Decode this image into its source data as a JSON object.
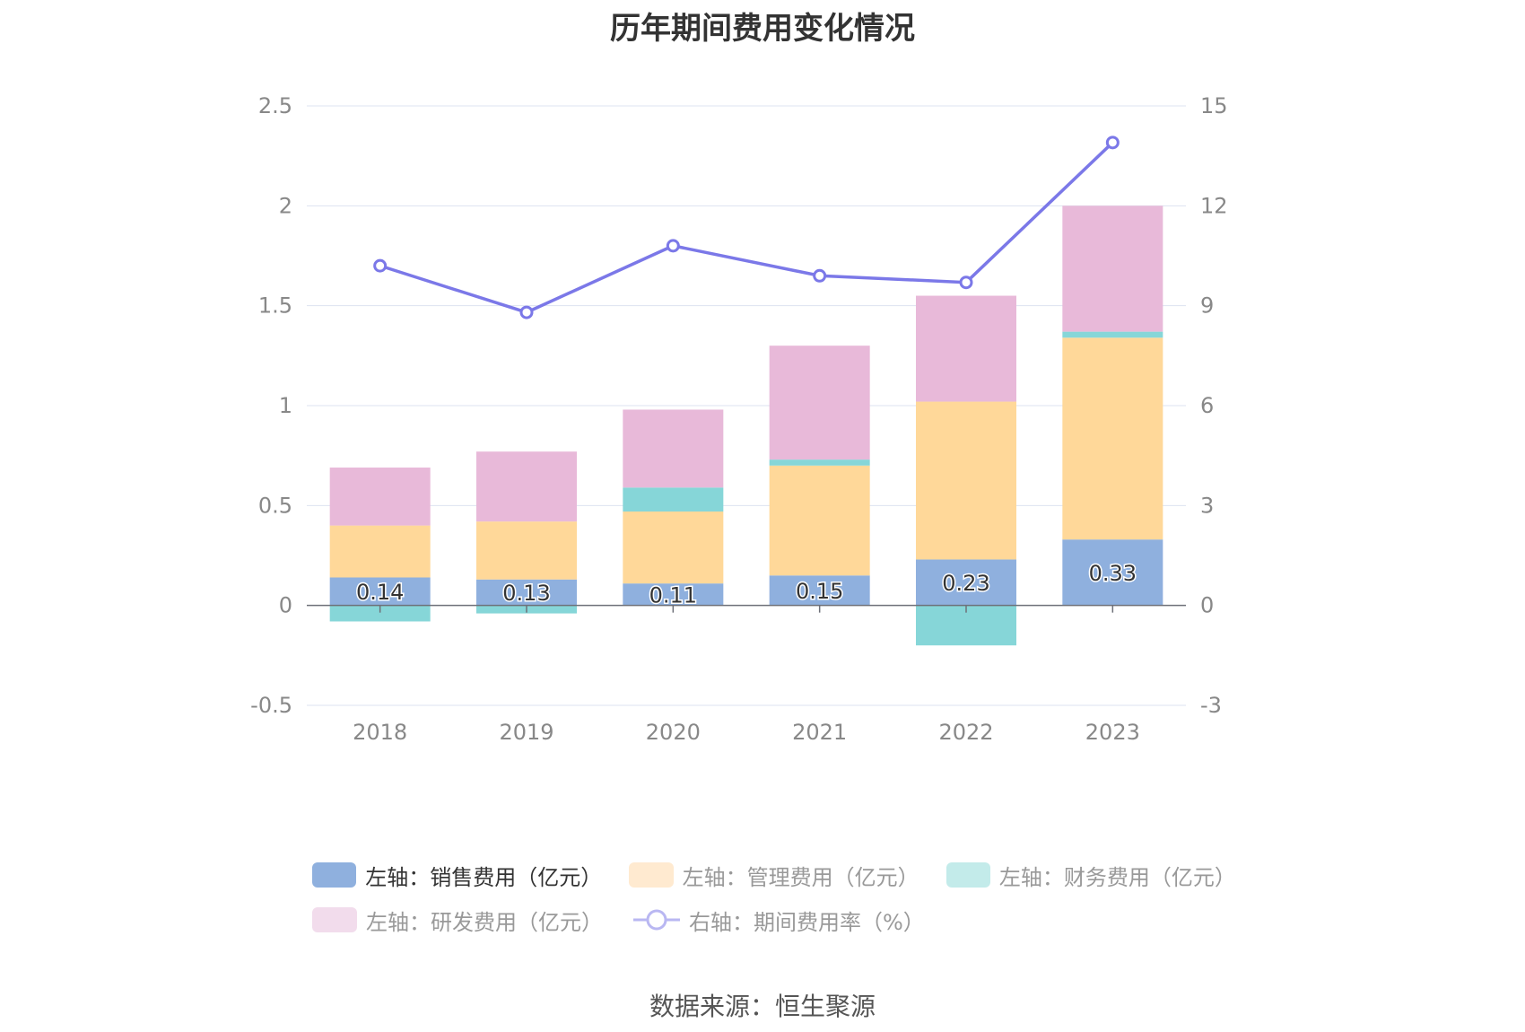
{
  "title": "历年期间费用变化情况",
  "source": "数据来源：恒生聚源",
  "colors": {
    "sales": "#8fb0de",
    "admin": "#ffd899",
    "finance": "#86d6d8",
    "rnd": "#e8b9d9",
    "rate": "#7b78e8",
    "grid": "#dde3f0",
    "axis_text": "#888888"
  },
  "legend": {
    "sales": "左轴：销售费用（亿元）",
    "admin": "左轴：管理费用（亿元）",
    "finance": "左轴：财务费用（亿元）",
    "rnd": "左轴：研发费用（亿元）",
    "rate": "右轴：期间费用率（%）"
  },
  "chart_data": {
    "type": "bar",
    "stacked": true,
    "categories": [
      "2018",
      "2019",
      "2020",
      "2021",
      "2022",
      "2023"
    ],
    "series": [
      {
        "name": "左轴：销售费用（亿元）",
        "axis": "left",
        "values": [
          0.14,
          0.13,
          0.11,
          0.15,
          0.23,
          0.33
        ],
        "labels": [
          "0.14",
          "0.13",
          "0.11",
          "0.15",
          "0.23",
          "0.33"
        ]
      },
      {
        "name": "左轴：管理费用（亿元）",
        "axis": "left",
        "values": [
          0.26,
          0.29,
          0.36,
          0.55,
          0.79,
          1.01
        ]
      },
      {
        "name": "左轴：财务费用（亿元）",
        "axis": "left",
        "values": [
          -0.08,
          -0.04,
          0.12,
          0.03,
          -0.2,
          0.03
        ]
      },
      {
        "name": "左轴：研发费用（亿元）",
        "axis": "left",
        "values": [
          0.29,
          0.35,
          0.39,
          0.57,
          0.53,
          0.63
        ]
      },
      {
        "name": "右轴：期间费用率（%）",
        "axis": "right",
        "type": "line",
        "values": [
          10.2,
          8.8,
          10.8,
          9.9,
          9.7,
          13.9
        ]
      }
    ],
    "y_left": {
      "min": -0.5,
      "max": 2.5,
      "ticks": [
        "-0.5",
        "0",
        "0.5",
        "1",
        "1.5",
        "2",
        "2.5"
      ]
    },
    "y_right": {
      "min": -3,
      "max": 15,
      "ticks": [
        "-3",
        "0",
        "3",
        "6",
        "9",
        "12",
        "15"
      ]
    },
    "grid": true,
    "legend_position": "bottom"
  }
}
